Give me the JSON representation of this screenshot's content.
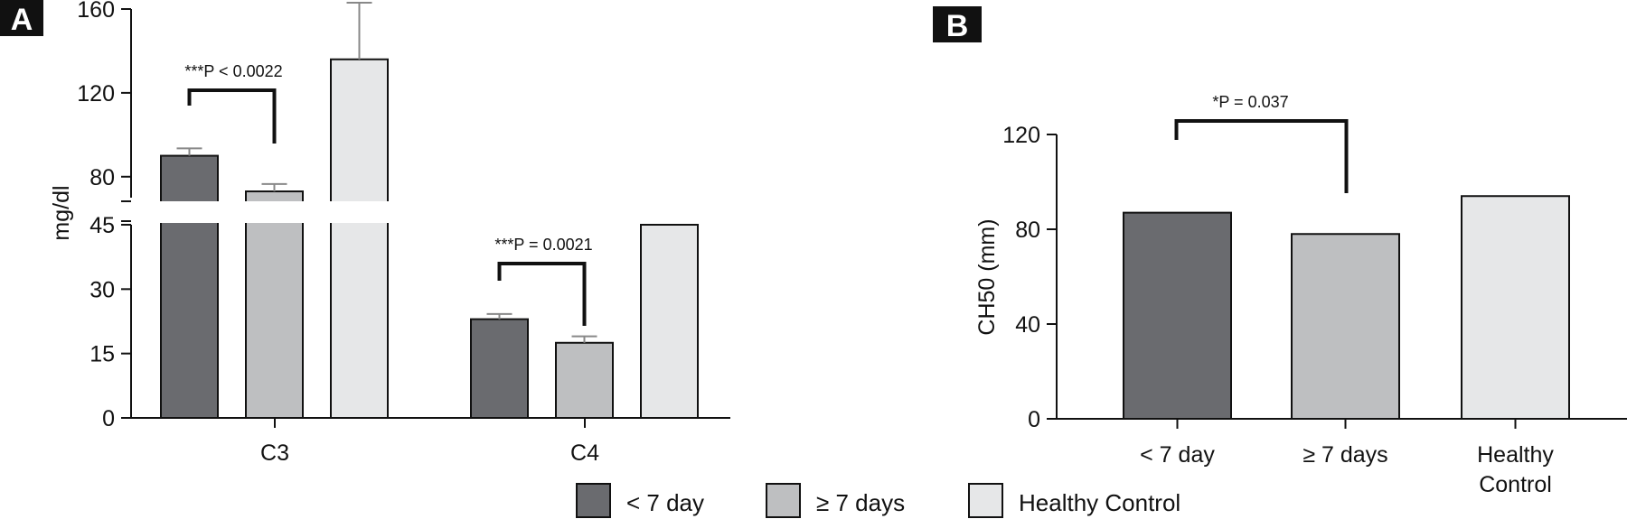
{
  "chart_data": [
    {
      "panel": "A",
      "type": "bar",
      "ylabel": "mg/dl",
      "ylim_lower": [
        0,
        45
      ],
      "ylim_upper": [
        70,
        160
      ],
      "yticks_lower": [
        0,
        15,
        30,
        45
      ],
      "yticks_upper": [
        80,
        120,
        160
      ],
      "axis_break": true,
      "categories": [
        "C3",
        "C4"
      ],
      "series": [
        {
          "name": "< 7 day",
          "values": [
            90,
            23
          ],
          "error": [
            3.5,
            1.2
          ]
        },
        {
          "name": "≥ 7 days",
          "values": [
            73,
            17.5
          ],
          "error": [
            3.5,
            1.5
          ]
        },
        {
          "name": "Healthy Control",
          "values": [
            136,
            45
          ],
          "error": [
            27,
            null
          ]
        }
      ],
      "annotations": [
        {
          "text": "***P < 0.0022",
          "category": "C3",
          "between": [
            "< 7 day",
            "≥ 7 days"
          ]
        },
        {
          "text": "***P = 0.0021",
          "category": "C4",
          "between": [
            "< 7 day",
            "≥ 7 days"
          ]
        }
      ]
    },
    {
      "panel": "B",
      "type": "bar",
      "ylabel": "CH50 (mm)",
      "ylim": [
        0,
        120
      ],
      "yticks": [
        0,
        40,
        80,
        120
      ],
      "categories": [
        "< 7 day",
        "≥ 7 days",
        "Healthy Control"
      ],
      "category_lines": [
        [
          "< 7 day"
        ],
        [
          "≥ 7 days"
        ],
        [
          "Healthy",
          "Control"
        ]
      ],
      "values": [
        87,
        78,
        94
      ],
      "annotations": [
        {
          "text": "*P = 0.037",
          "between": [
            "< 7 day",
            "≥ 7 days"
          ]
        }
      ]
    }
  ],
  "legend": {
    "position": "bottom-center",
    "items": [
      "< 7 day",
      "≥ 7 days",
      "Healthy Control"
    ]
  },
  "colors": {
    "< 7 day": "#6a6b6f",
    "≥ 7 days": "#bebfc1",
    "Healthy Control": "#e6e7e8",
    "axis": "#111111",
    "error_bar": "#888888"
  }
}
